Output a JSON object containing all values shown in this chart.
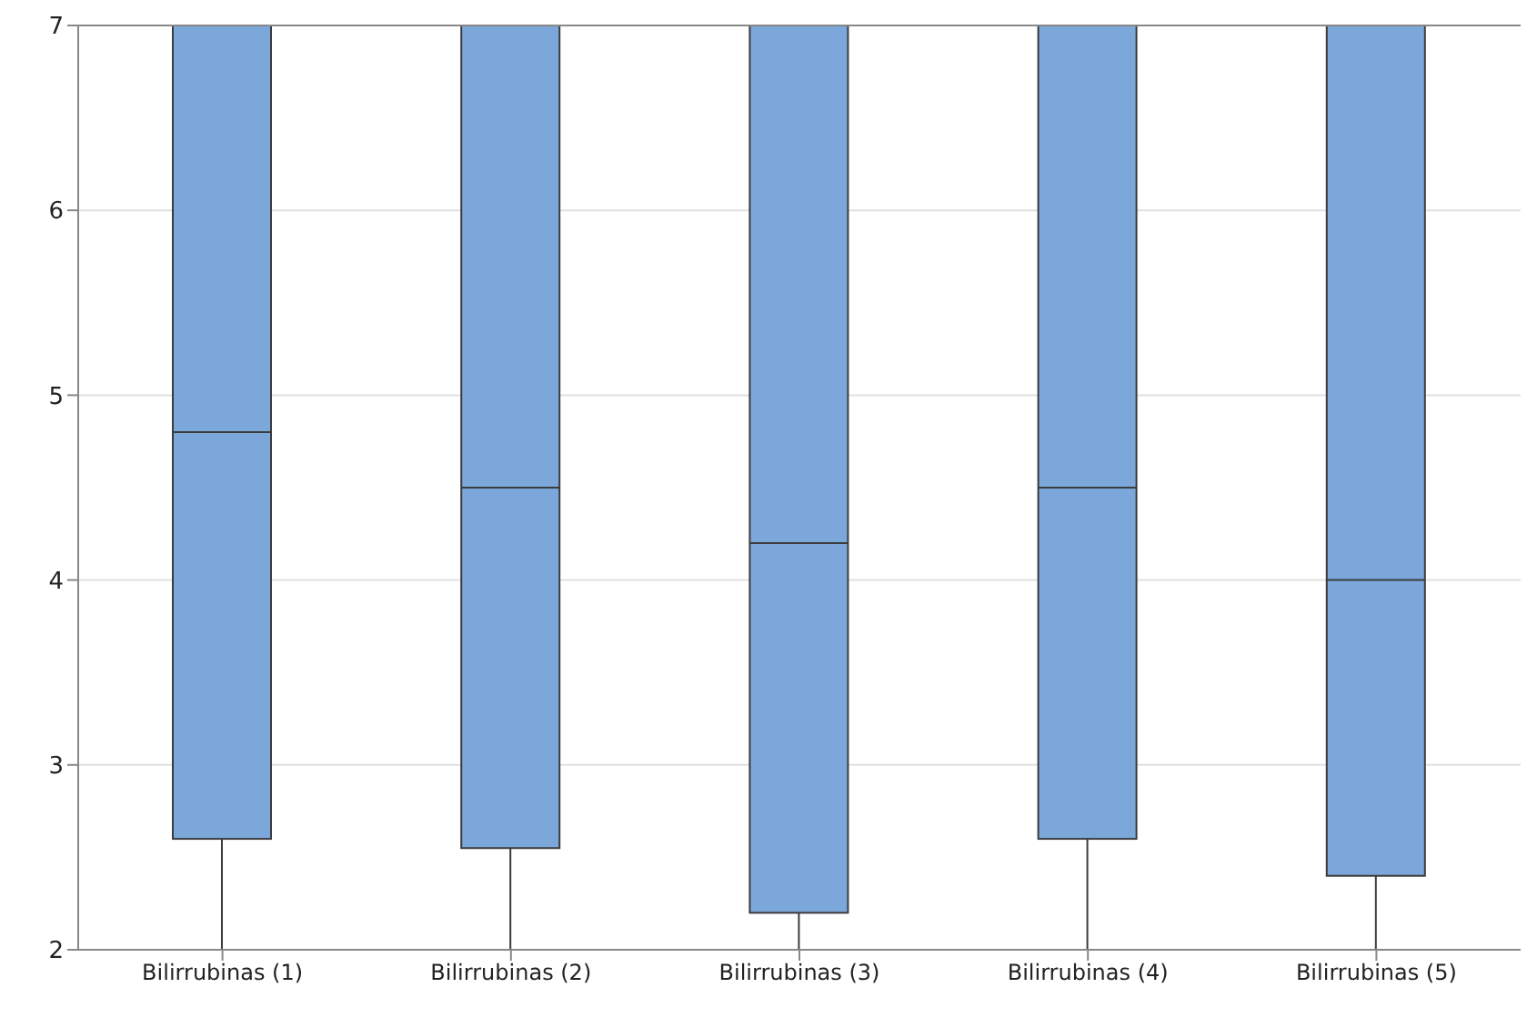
{
  "chart_data": {
    "type": "box",
    "categories": [
      "Bilirrubinas (1)",
      "Bilirrubinas (2)",
      "Bilirrubinas (3)",
      "Bilirrubinas (4)",
      "Bilirrubinas (5)"
    ],
    "color": "#7ba7db",
    "boxes": [
      {
        "low": 2,
        "q1": 2.6,
        "median": 4.8,
        "q3": 7
      },
      {
        "low": 2,
        "q1": 2.55,
        "median": 4.5,
        "q3": 7
      },
      {
        "low": 2,
        "q1": 2.2,
        "median": 4.2,
        "q3": 7
      },
      {
        "low": 2,
        "q1": 2.6,
        "median": 4.5,
        "q3": 7
      },
      {
        "low": 2,
        "q1": 2.4,
        "median": 4.0,
        "q3": 7
      }
    ],
    "ylim": [
      2,
      7
    ],
    "yticks": [
      2,
      3,
      4,
      5,
      6,
      7
    ],
    "grid": "y"
  }
}
